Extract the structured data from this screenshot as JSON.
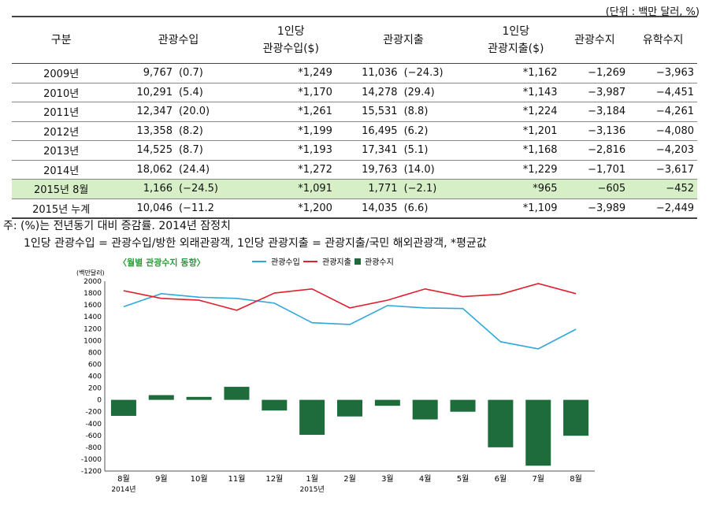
{
  "unit_note": "(단위 : 백만 달러, %)",
  "table": {
    "headers": [
      "구분",
      "관광수입",
      "1인당\n관광수입($)",
      "관광지출",
      "1인당\n관광지출($)",
      "관광수지",
      "유학수지"
    ],
    "rows": [
      [
        "2009년",
        "9,767",
        "(0.7)",
        "*1,249",
        "11,036",
        "(−24.3)",
        "*1,162",
        "−1,269",
        "−3,963"
      ],
      [
        "2010년",
        "10,291",
        "(5.4)",
        "*1,170",
        "14,278",
        "(29.4)",
        "*1,143",
        "−3,987",
        "−4,451"
      ],
      [
        "2011년",
        "12,347",
        "(20.0)",
        "*1,261",
        "15,531",
        "(8.8)",
        "*1,224",
        "−3,184",
        "−4,261"
      ],
      [
        "2012년",
        "13,358",
        "(8.2)",
        "*1,199",
        "16,495",
        "(6.2)",
        "*1,201",
        "−3,136",
        "−4,080"
      ],
      [
        "2013년",
        "14,525",
        "(8.7)",
        "*1,193",
        "17,341",
        "(5.1)",
        "*1,168",
        "−2,816",
        "−4,203"
      ],
      [
        "2014년",
        "18,062",
        "(24.4)",
        "*1,272",
        "19,763",
        "(14.0)",
        "*1,229",
        "−1,701",
        "−3,617"
      ],
      [
        "2015년 8월",
        "1,166",
        "(−24.5)",
        "*1,091",
        "1,771",
        "(−2.1)",
        "*965",
        "−605",
        "−452"
      ],
      [
        "2015년 누계",
        "10,046",
        "(−11.2",
        "*1,200",
        "14,035",
        "(6.6)",
        "*1,109",
        "−3,989",
        "−2,449"
      ]
    ]
  },
  "notes": [
    "주: (%)는 전년동기 대비 증감률. 2014년 잠정치",
    "1인당 관광수입 = 관광수입/방한 외래관광객, 1인당 관광지출 = 관광지출/국민 해외관광객, *평균값"
  ],
  "colors": {
    "receipts": "#2fa8d8",
    "expenditure": "#e0202e",
    "balance": "#1e6b3c",
    "highlight": "#d6efc6",
    "title": "#2a9a3a"
  },
  "chart_data": {
    "type": "bar+line",
    "title": "〈월별 관광수지 동향〉",
    "ylabel": "(백만달러)",
    "ylim": [
      -1200,
      2000
    ],
    "yticks": [
      2000,
      1800,
      1600,
      1400,
      1200,
      1000,
      800,
      600,
      400,
      200,
      0,
      -200,
      -400,
      -600,
      -800,
      -1000,
      -1200
    ],
    "categories": [
      "8월",
      "9월",
      "10월",
      "11월",
      "12월",
      "1월",
      "2월",
      "3월",
      "4월",
      "5월",
      "6월",
      "7월",
      "8월"
    ],
    "year_labels": {
      "0": "2014년",
      "5": "2015년"
    },
    "series": [
      {
        "name": "관광수입",
        "type": "line",
        "values": [
          1570,
          1790,
          1730,
          1710,
          1630,
          1300,
          1270,
          1590,
          1550,
          1540,
          980,
          860,
          1190
        ]
      },
      {
        "name": "관광지출",
        "type": "line",
        "values": [
          1840,
          1710,
          1680,
          1510,
          1800,
          1870,
          1550,
          1680,
          1870,
          1740,
          1780,
          1960,
          1790
        ]
      },
      {
        "name": "관광수지",
        "type": "bar",
        "values": [
          -270,
          80,
          50,
          220,
          -180,
          -590,
          -280,
          -100,
          -330,
          -200,
          -800,
          -1110,
          -605
        ]
      }
    ]
  }
}
